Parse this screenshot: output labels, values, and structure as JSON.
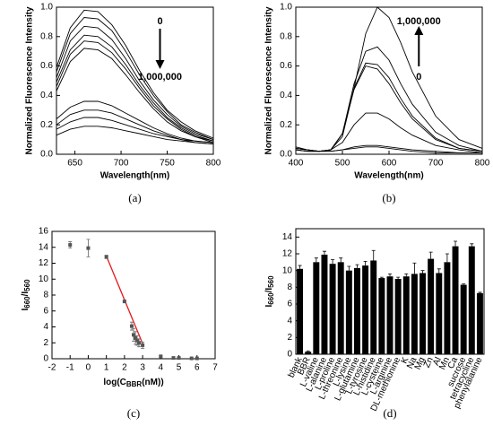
{
  "chart_data": [
    {
      "type": "line",
      "caption": "(a)",
      "xlabel": "Wavelength(nm)",
      "ylabel": "Normalized Fluorescence Intensity",
      "annotations": [
        "0",
        "1,000,000"
      ],
      "arrow": "down",
      "x": [
        630,
        645,
        660,
        675,
        690,
        705,
        720,
        735,
        750,
        765,
        780,
        800
      ],
      "xlim": [
        630,
        800
      ],
      "xticks": [
        650,
        700,
        750,
        800
      ],
      "ylim": [
        0,
        1
      ],
      "yticks": [
        {
          "value": 0,
          "label": "0.0"
        },
        0.2,
        0.4,
        0.6,
        0.8,
        {
          "value": 1,
          "label": "1.0"
        }
      ],
      "series": [
        {
          "color": "#000000",
          "values": [
            0.59,
            0.86,
            0.98,
            0.97,
            0.88,
            0.74,
            0.57,
            0.42,
            0.3,
            0.22,
            0.16,
            0.11
          ]
        },
        {
          "color": "#000000",
          "values": [
            0.56,
            0.82,
            0.93,
            0.92,
            0.84,
            0.7,
            0.54,
            0.4,
            0.29,
            0.2,
            0.15,
            0.1
          ]
        },
        {
          "color": "#000000",
          "values": [
            0.52,
            0.77,
            0.87,
            0.86,
            0.78,
            0.65,
            0.5,
            0.37,
            0.27,
            0.19,
            0.14,
            0.1
          ]
        },
        {
          "color": "#000000",
          "values": [
            0.49,
            0.71,
            0.81,
            0.8,
            0.73,
            0.61,
            0.47,
            0.35,
            0.25,
            0.18,
            0.13,
            0.09
          ]
        },
        {
          "color": "#000000",
          "values": [
            0.46,
            0.68,
            0.77,
            0.76,
            0.69,
            0.58,
            0.45,
            0.33,
            0.24,
            0.17,
            0.12,
            0.09
          ]
        },
        {
          "color": "#000000",
          "values": [
            0.43,
            0.63,
            0.72,
            0.71,
            0.65,
            0.54,
            0.42,
            0.31,
            0.22,
            0.16,
            0.12,
            0.08
          ]
        },
        {
          "color": "#000000",
          "values": [
            0.24,
            0.32,
            0.36,
            0.36,
            0.33,
            0.28,
            0.23,
            0.18,
            0.14,
            0.11,
            0.09,
            0.08
          ]
        },
        {
          "color": "#000000",
          "values": [
            0.2,
            0.27,
            0.3,
            0.3,
            0.28,
            0.24,
            0.2,
            0.16,
            0.13,
            0.1,
            0.09,
            0.08
          ]
        },
        {
          "color": "#000000",
          "values": [
            0.17,
            0.22,
            0.25,
            0.25,
            0.23,
            0.2,
            0.17,
            0.14,
            0.12,
            0.1,
            0.08,
            0.07
          ]
        },
        {
          "color": "#000000",
          "values": [
            0.13,
            0.17,
            0.19,
            0.19,
            0.18,
            0.16,
            0.14,
            0.12,
            0.1,
            0.09,
            0.08,
            0.07
          ]
        }
      ]
    },
    {
      "type": "line",
      "caption": "(b)",
      "xlabel": "Wavelength(nm)",
      "ylabel": "Normalized Fluorescence Intensity",
      "annotations": [
        "1,000,000",
        "0"
      ],
      "arrow": "up",
      "x": [
        400,
        425,
        450,
        475,
        500,
        525,
        550,
        575,
        600,
        625,
        650,
        700,
        750,
        800
      ],
      "xlim": [
        400,
        800
      ],
      "xticks": [
        400,
        500,
        600,
        700,
        800
      ],
      "ylim": [
        0,
        1
      ],
      "yticks": [
        {
          "value": 0,
          "label": "0.0"
        },
        0.2,
        0.4,
        0.6,
        0.8,
        {
          "value": 1,
          "label": "1.0"
        }
      ],
      "series": [
        {
          "color": "#000000",
          "values": [
            0.04,
            0.03,
            0.02,
            0.03,
            0.12,
            0.45,
            0.82,
            1.0,
            0.93,
            0.76,
            0.56,
            0.26,
            0.1,
            0.04
          ]
        },
        {
          "color": "#000000",
          "values": [
            0.03,
            0.02,
            0.02,
            0.03,
            0.14,
            0.48,
            0.7,
            0.73,
            0.64,
            0.48,
            0.34,
            0.15,
            0.06,
            0.02
          ]
        },
        {
          "color": "#000000",
          "values": [
            0.03,
            0.02,
            0.02,
            0.03,
            0.14,
            0.45,
            0.62,
            0.61,
            0.52,
            0.38,
            0.26,
            0.11,
            0.04,
            0.02
          ]
        },
        {
          "color": "#000000",
          "values": [
            0.03,
            0.02,
            0.02,
            0.03,
            0.14,
            0.44,
            0.6,
            0.58,
            0.48,
            0.35,
            0.24,
            0.1,
            0.04,
            0.02
          ]
        },
        {
          "color": "#000000",
          "values": [
            0.04,
            0.03,
            0.02,
            0.03,
            0.08,
            0.2,
            0.28,
            0.28,
            0.24,
            0.18,
            0.13,
            0.06,
            0.03,
            0.01
          ]
        },
        {
          "color": "#000000",
          "values": [
            0.05,
            0.03,
            0.02,
            0.02,
            0.03,
            0.05,
            0.06,
            0.06,
            0.05,
            0.04,
            0.03,
            0.02,
            0.01,
            0.01
          ]
        },
        {
          "color": "#000000",
          "values": [
            0.04,
            0.03,
            0.02,
            0.02,
            0.03,
            0.04,
            0.05,
            0.05,
            0.04,
            0.03,
            0.02,
            0.01,
            0.01,
            0.01
          ]
        }
      ]
    },
    {
      "type": "scatter",
      "caption": "(c)",
      "xlabel_parts": [
        "log(C",
        "BBR",
        "(nM))"
      ],
      "ylabel_parts": [
        "I",
        "660",
        "/I",
        "560"
      ],
      "color": "#555555",
      "x": [
        -1,
        0,
        1,
        2,
        2.4,
        2.5,
        2.6,
        2.7,
        2.8,
        3,
        4,
        4.7,
        5,
        5.7,
        6
      ],
      "y": [
        14.3,
        13.9,
        12.8,
        7.2,
        4.1,
        3.0,
        2.6,
        2.3,
        2.0,
        1.7,
        0.3,
        0.1,
        0.1,
        0.05,
        0.05
      ],
      "errors": [
        0.4,
        1.1,
        0.2,
        0.1,
        0.5,
        0.8,
        0.8,
        0.6,
        0.5,
        0.4,
        0.1,
        0.1,
        0.1,
        0,
        0
      ],
      "fit": {
        "color": "#e31a1c",
        "x": [
          1,
          3
        ],
        "y": [
          12.9,
          1.9
        ]
      },
      "xlim": [
        -2,
        7
      ],
      "xticks": [
        -2,
        -1,
        0,
        1,
        2,
        3,
        4,
        5,
        6,
        7
      ],
      "ylim": [
        0,
        16
      ],
      "yticks": [
        0,
        2,
        4,
        6,
        8,
        10,
        12,
        14,
        16
      ]
    },
    {
      "type": "bar",
      "caption": "(d)",
      "ylabel_parts": [
        "I",
        "660",
        "/I",
        "560"
      ],
      "color": "#000000",
      "categories": [
        "blank",
        "BBR",
        "L-valine",
        "L-alanine",
        "L-proline",
        "L-threonine",
        "L-lysine",
        "L-glutamine",
        "L-tyrosine",
        "L-histidine",
        "L-cysteine",
        "L-arginine",
        "DL-methionine",
        "K",
        "Na",
        "Mg",
        "Zn",
        "Al",
        "Mn",
        "Ca",
        "sucrose",
        "tetracycline",
        "phenylalanine"
      ],
      "values": [
        10.2,
        0.3,
        11.0,
        11.9,
        10.8,
        11.0,
        10.0,
        10.3,
        10.6,
        11.2,
        9.1,
        9.3,
        9.0,
        9.3,
        9.6,
        9.7,
        11.4,
        9.7,
        11.0,
        12.9,
        8.3,
        12.9,
        7.3
      ],
      "errors": [
        0.4,
        0.1,
        0.5,
        0.4,
        0.5,
        0.5,
        0.5,
        0.4,
        0.5,
        1.2,
        0.1,
        0.3,
        0.2,
        0.3,
        1.3,
        0.3,
        0.8,
        0.5,
        1.0,
        0.6,
        0.1,
        0.3,
        0.1
      ],
      "ylim": [
        0,
        15
      ],
      "yticks": [
        0,
        2,
        4,
        6,
        8,
        10,
        12,
        14
      ]
    }
  ]
}
